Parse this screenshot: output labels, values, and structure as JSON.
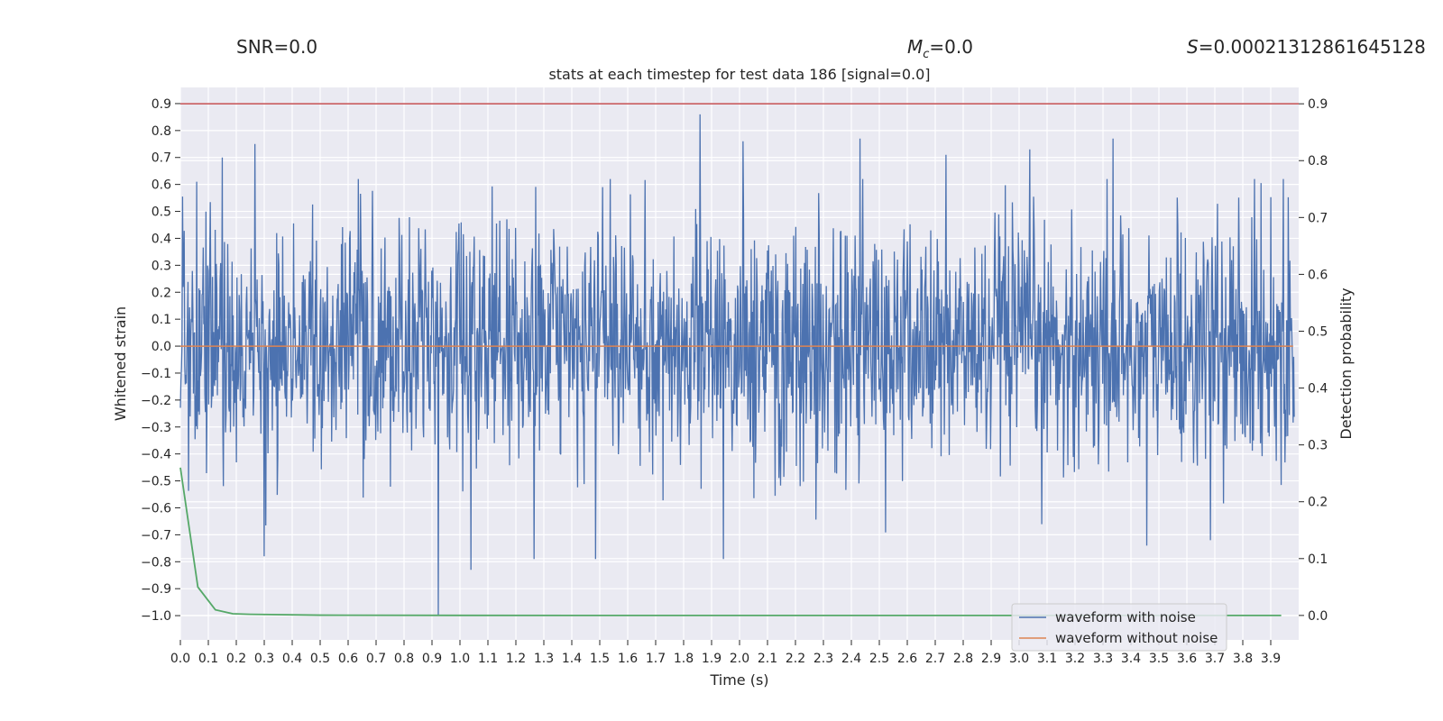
{
  "header": {
    "snr": "SNR=0.0",
    "mc_symbol": "M",
    "mc_sub": "c",
    "mc_value": "=0.0",
    "s_symbol": "S",
    "s_value": "=0.00021312861645128"
  },
  "chart_data": {
    "type": "line",
    "title": "stats at each timestep for test data 186 [signal=0.0]",
    "xlabel": "Time (s)",
    "ylabel_left": "Whitened strain",
    "ylabel_right": "Detection probability",
    "xlim": [
      0.0,
      4.0
    ],
    "ylim_left": [
      -1.09,
      0.96
    ],
    "ylim_right": [
      -0.043,
      0.9288
    ],
    "x_ticks": [
      "0.0",
      "0.1",
      "0.2",
      "0.3",
      "0.4",
      "0.5",
      "0.6",
      "0.7",
      "0.8",
      "0.9",
      "1.0",
      "1.1",
      "1.2",
      "1.3",
      "1.4",
      "1.5",
      "1.6",
      "1.7",
      "1.8",
      "1.9",
      "2.0",
      "2.1",
      "2.2",
      "2.3",
      "2.4",
      "2.5",
      "2.6",
      "2.7",
      "2.8",
      "2.9",
      "3.0",
      "3.1",
      "3.2",
      "3.3",
      "3.4",
      "3.5",
      "3.6",
      "3.7",
      "3.8",
      "3.9"
    ],
    "y_ticks_left": [
      "0.9",
      "0.8",
      "0.7",
      "0.6",
      "0.5",
      "0.4",
      "0.3",
      "0.2",
      "0.1",
      "0.0",
      "−0.1",
      "−0.2",
      "−0.3",
      "−0.4",
      "−0.5",
      "−0.6",
      "−0.7",
      "−0.8",
      "−0.9",
      "−1.0"
    ],
    "y_ticks_right": [
      "0.9",
      "0.8",
      "0.7",
      "0.6",
      "0.5",
      "0.4",
      "0.3",
      "0.2",
      "0.1",
      "0.0"
    ],
    "threshold": {
      "axis": "right",
      "y": 0.9,
      "color": "#c44e52"
    },
    "series": [
      {
        "name": "waveform with noise",
        "axis": "left",
        "color": "#4c72b0",
        "duration_s": 4.0,
        "noise_scale": 0.22,
        "spikes": [
          {
            "x": 1.866,
            "y": 0.86
          },
          {
            "x": 0.927,
            "y": -1.0
          },
          {
            "x": 0.268,
            "y": 0.75
          },
          {
            "x": 1.044,
            "y": -0.83
          },
          {
            "x": 2.02,
            "y": 0.76
          },
          {
            "x": 2.44,
            "y": 0.77
          },
          {
            "x": 3.05,
            "y": 0.73
          },
          {
            "x": 3.35,
            "y": 0.77
          },
          {
            "x": 0.058,
            "y": 0.61
          },
          {
            "x": 0.15,
            "y": 0.7
          },
          {
            "x": 0.3,
            "y": -0.78
          },
          {
            "x": 1.27,
            "y": -0.79
          },
          {
            "x": 1.49,
            "y": -0.79
          },
          {
            "x": 1.95,
            "y": -0.79
          },
          {
            "x": 3.7,
            "y": -0.72
          },
          {
            "x": 3.47,
            "y": -0.74
          },
          {
            "x": 2.75,
            "y": 0.71
          },
          {
            "x": 3.96,
            "y": 0.62
          }
        ]
      },
      {
        "name": "waveform without noise",
        "axis": "left",
        "color": "#dd8452",
        "x": [
          0.0,
          3.98
        ],
        "y": [
          0.0,
          0.0
        ]
      },
      {
        "name": "detection probability",
        "axis": "right",
        "color": "#55a868",
        "x": [
          0.0,
          0.0625,
          0.125,
          0.1875,
          0.25,
          0.5,
          1.0,
          2.0,
          3.0,
          3.9375
        ],
        "y": [
          0.26,
          0.05,
          0.01,
          0.003,
          0.002,
          0.0005,
          0.0001,
          0.0,
          0.0,
          0.0
        ]
      }
    ],
    "legend": {
      "position": "lower-right",
      "entries": [
        {
          "label": "waveform with noise",
          "color": "#4c72b0"
        },
        {
          "label": "waveform without noise",
          "color": "#dd8452"
        }
      ]
    },
    "grid": true,
    "background": "#eaeaf2"
  }
}
